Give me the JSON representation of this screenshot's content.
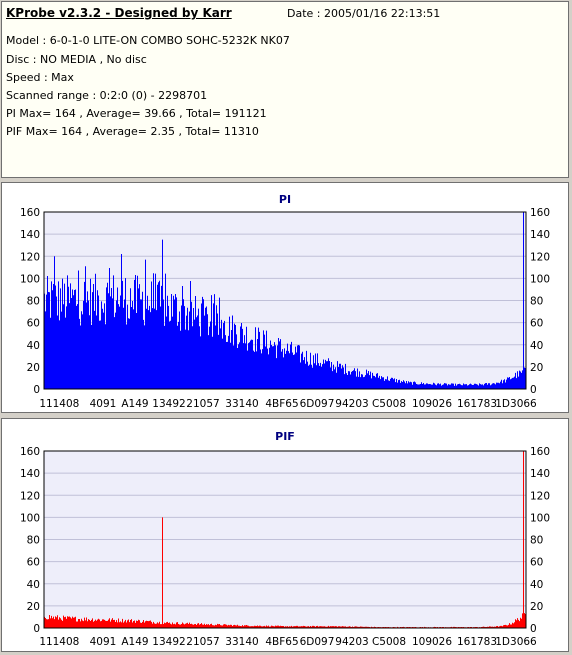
{
  "header": {
    "title": "KProbe v2.3.2 - Designed by Karr",
    "date": "Date : 2005/01/16 22:13:51",
    "lines": [
      "Model : 6-0-1-0 LITE-ON COMBO SOHC-5232K NK07",
      "Disc : NO MEDIA , No disc",
      "Speed : Max",
      "Scanned range : 0:2:0 (0) - 2298701",
      "PI Max= 164 , Average= 39.66 , Total= 191121",
      "PIF Max= 164 , Average= 2.35 , Total= 11310"
    ]
  },
  "colors": {
    "pi": "#0000ff",
    "pif": "#ff0000",
    "plot_bg": "#eeeefa",
    "title": "#000080"
  },
  "chart_data": [
    {
      "type": "bar",
      "title": "PI",
      "color": "#0000ff",
      "ylim": [
        0,
        160
      ],
      "y_ticks": [
        0,
        20,
        40,
        60,
        80,
        100,
        120,
        140,
        160
      ],
      "x_tick_labels": [
        "11",
        "1408",
        "4091",
        "A149",
        "13492",
        "21057",
        "33140",
        "4BF65",
        "6D097",
        "94203",
        "C5008",
        "109026",
        "161783",
        "1D3066"
      ],
      "grid": true,
      "envelope": {
        "x": [
          0,
          0.02,
          0.05,
          0.1,
          0.15,
          0.2,
          0.25,
          0.3,
          0.35,
          0.4,
          0.45,
          0.5,
          0.55,
          0.6,
          0.65,
          0.7,
          0.73,
          0.76,
          0.8,
          0.85,
          0.9,
          0.93,
          0.96,
          0.98,
          1.0
        ],
        "y": [
          102,
          103,
          104,
          104,
          107,
          103,
          97,
          88,
          78,
          67,
          56,
          46,
          36,
          27,
          20,
          14,
          10,
          7,
          6,
          5,
          5,
          6,
          10,
          16,
          20
        ]
      },
      "peaks": [
        {
          "x": 0.246,
          "y": 135
        },
        {
          "x": 0.16,
          "y": 122
        },
        {
          "x": 0.21,
          "y": 117
        },
        {
          "x": 0.02,
          "y": 120
        },
        {
          "x": 0.996,
          "y": 164
        }
      ],
      "max": 164,
      "average": 39.66
    },
    {
      "type": "bar",
      "title": "PIF",
      "color": "#ff0000",
      "ylim": [
        0,
        160
      ],
      "y_ticks": [
        0,
        20,
        40,
        60,
        80,
        100,
        120,
        140,
        160
      ],
      "x_tick_labels": [
        "11",
        "1408",
        "4091",
        "A149",
        "13492",
        "21057",
        "33140",
        "4BF65",
        "6D097",
        "94203",
        "C5008",
        "109026",
        "161783",
        "1D3066"
      ],
      "grid": true,
      "envelope": {
        "x": [
          0,
          0.02,
          0.05,
          0.1,
          0.15,
          0.2,
          0.25,
          0.3,
          0.35,
          0.4,
          0.5,
          0.6,
          0.7,
          0.8,
          0.9,
          0.95,
          0.97,
          0.99,
          1.0
        ],
        "y": [
          14,
          12,
          11,
          10,
          9,
          8,
          6,
          5,
          4,
          3,
          2,
          2,
          1,
          1,
          1,
          2,
          5,
          12,
          16
        ]
      },
      "peaks": [
        {
          "x": 0.246,
          "y": 100
        },
        {
          "x": 0.996,
          "y": 164
        }
      ],
      "max": 164,
      "average": 2.35
    }
  ]
}
